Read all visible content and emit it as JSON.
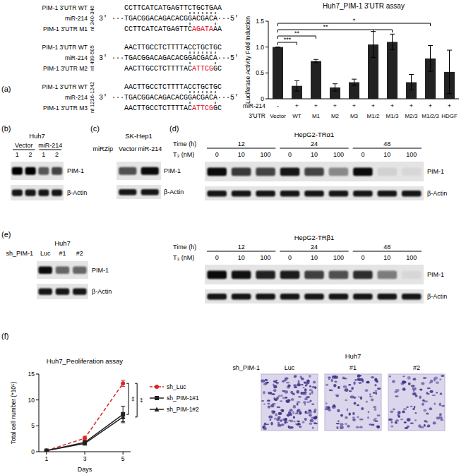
{
  "chart_data": [
    {
      "type": "bar",
      "title": "Huh7_PIM-1 3'UTR assay",
      "y_label": "Luciferase Activity Fold Induction",
      "x_label": "3'UTR",
      "categories": [
        "Vector",
        "WT",
        "M1",
        "M2",
        "M3",
        "M1/2",
        "M1/3",
        "M2/3",
        "M1/2/3",
        "HDGF"
      ],
      "values": [
        1.0,
        0.25,
        0.73,
        0.22,
        0.32,
        1.05,
        1.1,
        0.32,
        0.78,
        0.52
      ],
      "errors": [
        0,
        0.1,
        0.03,
        0.07,
        0.06,
        0.25,
        0.15,
        0.15,
        0.25,
        0.42
      ],
      "treatment_row": {
        "label": "miR-214",
        "values": [
          "-",
          "+",
          "+",
          "+",
          "+",
          "+",
          "+",
          "+",
          "+",
          "+"
        ]
      },
      "significance": [
        {
          "from": "Vector",
          "to": [
            "WT"
          ],
          "label": "***"
        },
        {
          "from": "Vector",
          "to": [
            "M1"
          ],
          "label": "**"
        },
        {
          "from": "Vector",
          "to": [
            "M1/2",
            "M1/3"
          ],
          "label": "**"
        },
        {
          "from": "Vector",
          "to": [
            "M1/2/3"
          ],
          "label": "*"
        }
      ],
      "color": "#222222",
      "ylim": [
        0,
        1.5
      ],
      "yticks": [
        0,
        0.5,
        {
          "value": 1,
          "label": "1.0"
        },
        1.5
      ],
      "grid": false
    },
    {
      "type": "line",
      "title": "Huh7_Peoliferation assay",
      "x_label": "Days",
      "y_label": "Total cell number (*10⁵)",
      "x": [
        1,
        3,
        5
      ],
      "xlim": [
        0.6,
        5.4
      ],
      "xticks": [
        1,
        3,
        5
      ],
      "ylim": [
        0,
        15
      ],
      "yticks": [
        0,
        5,
        10,
        15
      ],
      "grid": false,
      "legend": "right",
      "series": [
        {
          "name": "sh_Luc",
          "color": "#d62728",
          "line_style": "dashed",
          "marker": "circle",
          "values": [
            0.2,
            2.6,
            13.2
          ],
          "errors": [
            0.05,
            0.4,
            0.6
          ]
        },
        {
          "name": "sh_PIM-1#1",
          "color": "#222222",
          "line_style": "solid",
          "marker": "square",
          "values": [
            0.2,
            1.8,
            7.2
          ],
          "errors": [
            0.05,
            0.3,
            1.6
          ]
        },
        {
          "name": "sh_PIM-1#2",
          "color": "#222222",
          "line_style": "solid",
          "marker": "triangle",
          "values": [
            0.2,
            1.6,
            6.7
          ],
          "errors": [
            0.05,
            0.3,
            0.9
          ]
        }
      ],
      "significance": [
        {
          "from": "sh_Luc",
          "to": "sh_PIM-1#1",
          "label": "**"
        },
        {
          "from": "sh_Luc",
          "to": "sh_PIM-1#2",
          "label": "**"
        }
      ]
    }
  ],
  "diagram": {
    "panel_labels": {
      "a": "(a)",
      "b": "(b)",
      "c": "(c)",
      "d": "(d)",
      "e": "(e)",
      "f": "(f)"
    },
    "alignment": [
      {
        "region": "nt 340-346",
        "wt_label": "PIM-1 3'UTR WT",
        "wt_seq": "CCTTCATCATGAGTTCTGCTGAA",
        "mir_label": "miR-214",
        "mir_seq": "3' ···TGACGGACAGACACGGACGACA···5'",
        "mut_label": "PIM-1 3'UTR M1",
        "mut_seq": [
          "CCTTCATCATGAGTTC",
          "AGATA",
          "AA"
        ]
      },
      {
        "region": "nt 499-505",
        "wt_label": "PIM-1 3'UTR WT",
        "wt_seq": "AACTTGCCTCTTTTACCTGCTGC",
        "mir_label": "miR-214",
        "mir_seq": "3' ···TGACGGACAGACACGGACGACA···5'",
        "mut_label": "PIM-1 3'UTR M2",
        "mut_seq": [
          "AACTTGCCTCTTTTAC",
          "ATTCG",
          "GC"
        ]
      },
      {
        "region": "nt 1236-1242",
        "wt_label": "PIM-1 3'UTR WT",
        "wt_seq": "AACTTGCCTCTTTTACCTGCTGC",
        "mir_label": "miR-214",
        "mir_seq": "3' ···TGACGGACAGACACGGACGACA···5'",
        "mut_label": "PIM-1 3'UTR M3",
        "mut_seq": [
          "AACTTGCCTCTTTTAC",
          "ATTCG",
          "GC"
        ]
      }
    ],
    "blots": [
      {
        "title": "Huh7",
        "groups": [
          "Vector",
          "miR-214"
        ],
        "lanes": [
          "1",
          "2",
          "1",
          "2"
        ],
        "rows": [
          "PIM-1",
          "β-Actin"
        ]
      },
      {
        "title": "SK-Hep1",
        "lane_header": "miRZip",
        "lanes": [
          "Vector",
          "miR-214"
        ],
        "rows": [
          "PIM-1",
          "β-Actin"
        ]
      },
      {
        "title": "HepG2-TRα1",
        "group_header": "Time (h)",
        "groups": [
          "12",
          "24",
          "48"
        ],
        "lane_header": "T₃ (nM)",
        "lanes": [
          "0",
          "10",
          "100",
          "0",
          "10",
          "100",
          "0",
          "10",
          "100"
        ],
        "rows": [
          "PIM-1",
          "β-Actin"
        ]
      },
      {
        "title": "HepG2-TRβ1",
        "group_header": "Time (h)",
        "groups": [
          "12",
          "24",
          "48"
        ],
        "lane_header": "T₃ (nM)",
        "lanes": [
          "0",
          "10",
          "100",
          "0",
          "10",
          "100",
          "0",
          "10",
          "100"
        ],
        "rows": [
          "PIM-1",
          "β-Actin"
        ]
      },
      {
        "title": "Huh7",
        "lane_header": "sh_PIM-1",
        "lanes": [
          "Luc",
          "#1",
          "#2"
        ],
        "rows": [
          "PIM-1",
          "β-Actin"
        ]
      }
    ],
    "images": {
      "title": "Huh7",
      "lane_header": "sh_PIM-1",
      "lanes": [
        "Luc",
        "#1",
        "#2"
      ]
    }
  }
}
